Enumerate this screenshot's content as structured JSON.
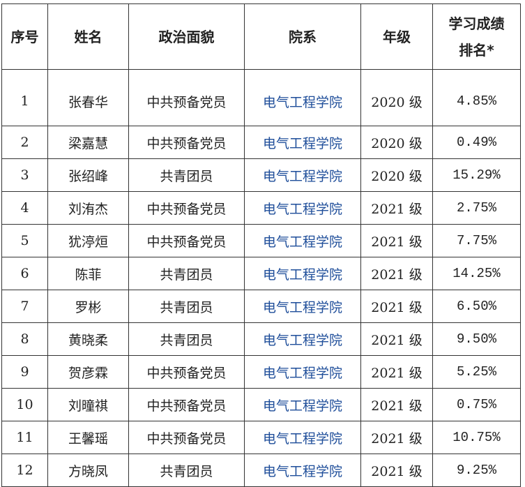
{
  "table": {
    "headers": [
      "序号",
      "姓名",
      "政治面貌",
      "院系",
      "年级",
      "学习成绩排名*"
    ],
    "header_rank_line1": "学习成绩",
    "header_rank_line2": "排名*",
    "rows": [
      [
        "1",
        "张春华",
        "中共预备党员",
        "电气工程学院",
        "2020 级",
        "4.85%"
      ],
      [
        "2",
        "梁嘉慧",
        "中共预备党员",
        "电气工程学院",
        "2020 级",
        "0.49%"
      ],
      [
        "3",
        "张绍峰",
        "共青团员",
        "电气工程学院",
        "2020 级",
        "15.29%"
      ],
      [
        "4",
        "刘洧杰",
        "中共预备党员",
        "电气工程学院",
        "2021 级",
        "2.75%"
      ],
      [
        "5",
        "犹渟烜",
        "中共预备党员",
        "电气工程学院",
        "2021 级",
        "7.75%"
      ],
      [
        "6",
        "陈菲",
        "共青团员",
        "电气工程学院",
        "2021 级",
        "14.25%"
      ],
      [
        "7",
        "罗彬",
        "共青团员",
        "电气工程学院",
        "2021 级",
        "6.50%"
      ],
      [
        "8",
        "黄晓柔",
        "共青团员",
        "电气工程学院",
        "2021 级",
        "9.50%"
      ],
      [
        "9",
        "贺彦霖",
        "中共预备党员",
        "电气工程学院",
        "2021 级",
        "5.25%"
      ],
      [
        "10",
        "刘曈祺",
        "中共预备党员",
        "电气工程学院",
        "2021 级",
        "0.75%"
      ],
      [
        "11",
        "王馨瑶",
        "中共预备党员",
        "电气工程学院",
        "2021 级",
        "10.75%"
      ],
      [
        "12",
        "方晓凤",
        "共青团员",
        "电气工程学院",
        "2021 级",
        "9.25%"
      ]
    ]
  },
  "colors": {
    "department_text": "#1f4e9a",
    "border": "#333333"
  }
}
